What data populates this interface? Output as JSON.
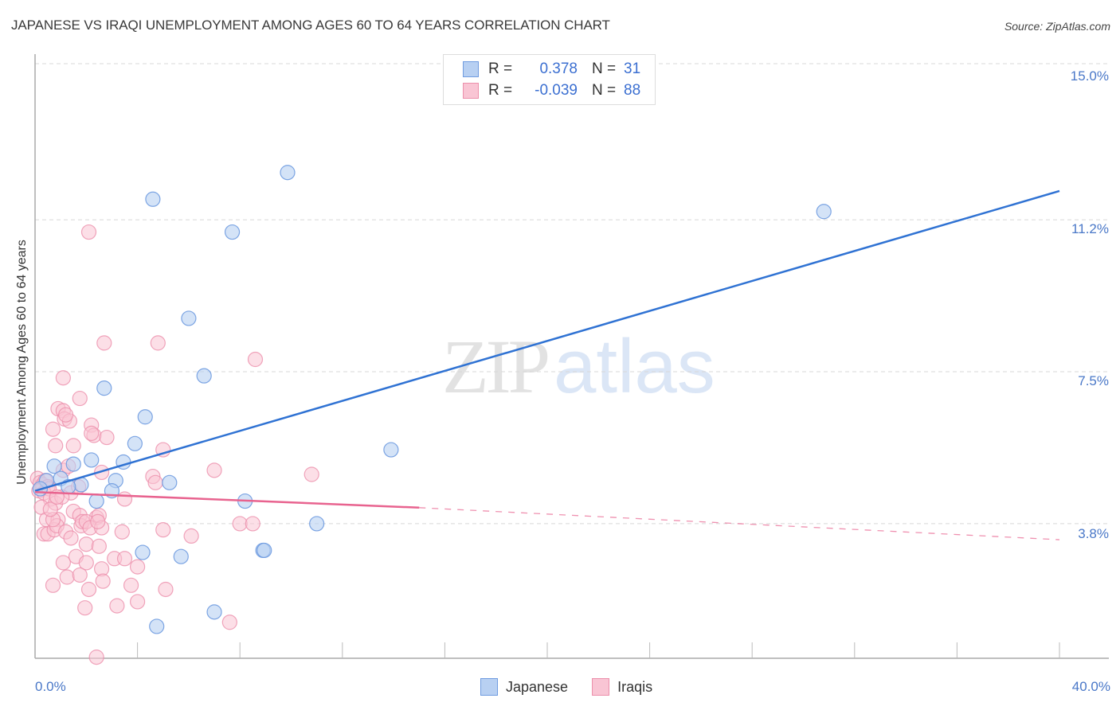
{
  "header": {
    "title": "JAPANESE VS IRAQI UNEMPLOYMENT AMONG AGES 60 TO 64 YEARS CORRELATION CHART",
    "source": "Source: ZipAtlas.com"
  },
  "legend_top": {
    "rows": [
      {
        "series": "Japanese",
        "r_label": "R =",
        "r_value": "0.378",
        "n_label": "N =",
        "n_value": "31"
      },
      {
        "series": "Iraqis",
        "r_label": "R =",
        "r_value": "-0.039",
        "n_label": "N =",
        "n_value": "88"
      }
    ]
  },
  "legend_bottom": {
    "items": [
      {
        "label": "Japanese"
      },
      {
        "label": "Iraqis"
      }
    ]
  },
  "axes": {
    "y_label": "Unemployment Among Ages 60 to 64 years",
    "y_ticks": [
      "15.0%",
      "11.2%",
      "7.5%",
      "3.8%"
    ],
    "x_ticks": [
      "0.0%",
      "40.0%"
    ]
  },
  "watermark": {
    "zip": "ZIP",
    "atlas": "atlas"
  },
  "colors": {
    "japanese_fill": "#b8d0f2",
    "japanese_stroke": "#6f9be0",
    "japanese_line": "#2f72d3",
    "iraqis_fill": "#f9c5d4",
    "iraqis_stroke": "#ec8fab",
    "iraqis_line": "#e8638f",
    "tick_text": "#4a78c8"
  },
  "chart_data": {
    "type": "scatter",
    "title": "JAPANESE VS IRAQI UNEMPLOYMENT AMONG AGES 60 TO 64 YEARS CORRELATION CHART",
    "xlabel": "",
    "ylabel": "Unemployment Among Ages 60 to 64 years",
    "xlim": [
      0,
      40
    ],
    "ylim": [
      0,
      15
    ],
    "x_ticks": [
      0,
      40
    ],
    "y_ticks": [
      3.8,
      7.5,
      11.2,
      15.0
    ],
    "grid": true,
    "legend_position": "top-center and bottom",
    "series": [
      {
        "name": "Japanese",
        "R": 0.378,
        "N": 31,
        "trend": {
          "x": [
            0,
            40
          ],
          "y": [
            4.6,
            11.9
          ]
        },
        "points": [
          [
            9.86,
            12.35
          ],
          [
            4.6,
            11.7
          ],
          [
            7.7,
            10.9
          ],
          [
            30.8,
            11.4
          ],
          [
            6.0,
            8.8
          ],
          [
            6.6,
            7.4
          ],
          [
            2.7,
            7.1
          ],
          [
            4.3,
            6.4
          ],
          [
            13.9,
            5.6
          ],
          [
            3.9,
            5.75
          ],
          [
            3.45,
            5.3
          ],
          [
            2.2,
            5.35
          ],
          [
            1.5,
            5.25
          ],
          [
            0.75,
            5.2
          ],
          [
            1.0,
            4.9
          ],
          [
            1.8,
            4.75
          ],
          [
            3.15,
            4.85
          ],
          [
            3.0,
            4.6
          ],
          [
            5.25,
            4.8
          ],
          [
            1.3,
            4.7
          ],
          [
            2.4,
            4.35
          ],
          [
            8.2,
            4.35
          ],
          [
            11.0,
            3.8
          ],
          [
            4.2,
            3.1
          ],
          [
            5.7,
            3.0
          ],
          [
            8.9,
            3.15
          ],
          [
            8.95,
            3.15
          ],
          [
            7.0,
            1.65
          ],
          [
            4.75,
            1.3
          ],
          [
            0.45,
            4.85
          ],
          [
            0.2,
            4.65
          ]
        ]
      },
      {
        "name": "Iraqis",
        "R": -0.039,
        "N": 88,
        "trend": {
          "x": [
            0,
            15,
            40
          ],
          "y": [
            4.57,
            4.19,
            3.41
          ],
          "solid_until": 15
        },
        "points": [
          [
            2.1,
            10.9
          ],
          [
            2.7,
            8.2
          ],
          [
            4.8,
            8.2
          ],
          [
            8.6,
            7.8
          ],
          [
            1.1,
            7.35
          ],
          [
            0.9,
            6.6
          ],
          [
            1.1,
            6.55
          ],
          [
            1.75,
            6.85
          ],
          [
            1.15,
            6.35
          ],
          [
            1.35,
            6.3
          ],
          [
            1.2,
            6.45
          ],
          [
            2.2,
            6.2
          ],
          [
            2.3,
            5.95
          ],
          [
            2.8,
            5.9
          ],
          [
            0.7,
            6.1
          ],
          [
            0.8,
            5.7
          ],
          [
            1.5,
            5.7
          ],
          [
            2.2,
            6.0
          ],
          [
            5.0,
            5.6
          ],
          [
            7.0,
            5.1
          ],
          [
            10.8,
            5.0
          ],
          [
            1.1,
            5.1
          ],
          [
            1.3,
            5.2
          ],
          [
            2.6,
            5.05
          ],
          [
            3.5,
            4.4
          ],
          [
            4.6,
            4.95
          ],
          [
            4.7,
            4.8
          ],
          [
            0.1,
            4.9
          ],
          [
            0.2,
            4.8
          ],
          [
            0.3,
            4.75
          ],
          [
            0.4,
            4.85
          ],
          [
            0.5,
            4.7
          ],
          [
            0.15,
            4.6
          ],
          [
            0.35,
            4.55
          ],
          [
            0.55,
            4.65
          ],
          [
            0.6,
            4.4
          ],
          [
            0.8,
            4.3
          ],
          [
            1.4,
            4.55
          ],
          [
            0.25,
            4.2
          ],
          [
            0.45,
            3.9
          ],
          [
            0.9,
            3.9
          ],
          [
            1.5,
            4.1
          ],
          [
            1.75,
            4.0
          ],
          [
            2.4,
            3.95
          ],
          [
            2.5,
            4.0
          ],
          [
            1.8,
            3.75
          ],
          [
            1.85,
            3.85
          ],
          [
            2.0,
            3.85
          ],
          [
            2.15,
            3.7
          ],
          [
            2.6,
            3.7
          ],
          [
            0.35,
            3.55
          ],
          [
            0.5,
            3.55
          ],
          [
            0.75,
            3.65
          ],
          [
            0.85,
            3.75
          ],
          [
            0.7,
            3.9
          ],
          [
            1.2,
            3.6
          ],
          [
            2.45,
            3.85
          ],
          [
            3.4,
            3.6
          ],
          [
            5.0,
            3.65
          ],
          [
            6.1,
            3.5
          ],
          [
            8.0,
            3.8
          ],
          [
            8.5,
            3.8
          ],
          [
            1.4,
            3.45
          ],
          [
            2.0,
            3.3
          ],
          [
            2.5,
            3.25
          ],
          [
            1.6,
            3.0
          ],
          [
            2.0,
            2.85
          ],
          [
            3.1,
            2.95
          ],
          [
            3.5,
            2.95
          ],
          [
            4.0,
            2.75
          ],
          [
            1.1,
            2.85
          ],
          [
            2.6,
            2.7
          ],
          [
            1.25,
            2.5
          ],
          [
            1.75,
            2.55
          ],
          [
            2.65,
            2.4
          ],
          [
            0.7,
            2.3
          ],
          [
            2.1,
            2.2
          ],
          [
            4.0,
            1.9
          ],
          [
            5.1,
            2.2
          ],
          [
            3.2,
            1.8
          ],
          [
            1.95,
            1.75
          ],
          [
            7.6,
            1.4
          ],
          [
            2.4,
            0.55
          ],
          [
            3.75,
            2.3
          ],
          [
            1.05,
            4.45
          ],
          [
            0.6,
            4.15
          ],
          [
            0.85,
            4.45
          ],
          [
            1.7,
            4.7
          ]
        ]
      }
    ]
  }
}
